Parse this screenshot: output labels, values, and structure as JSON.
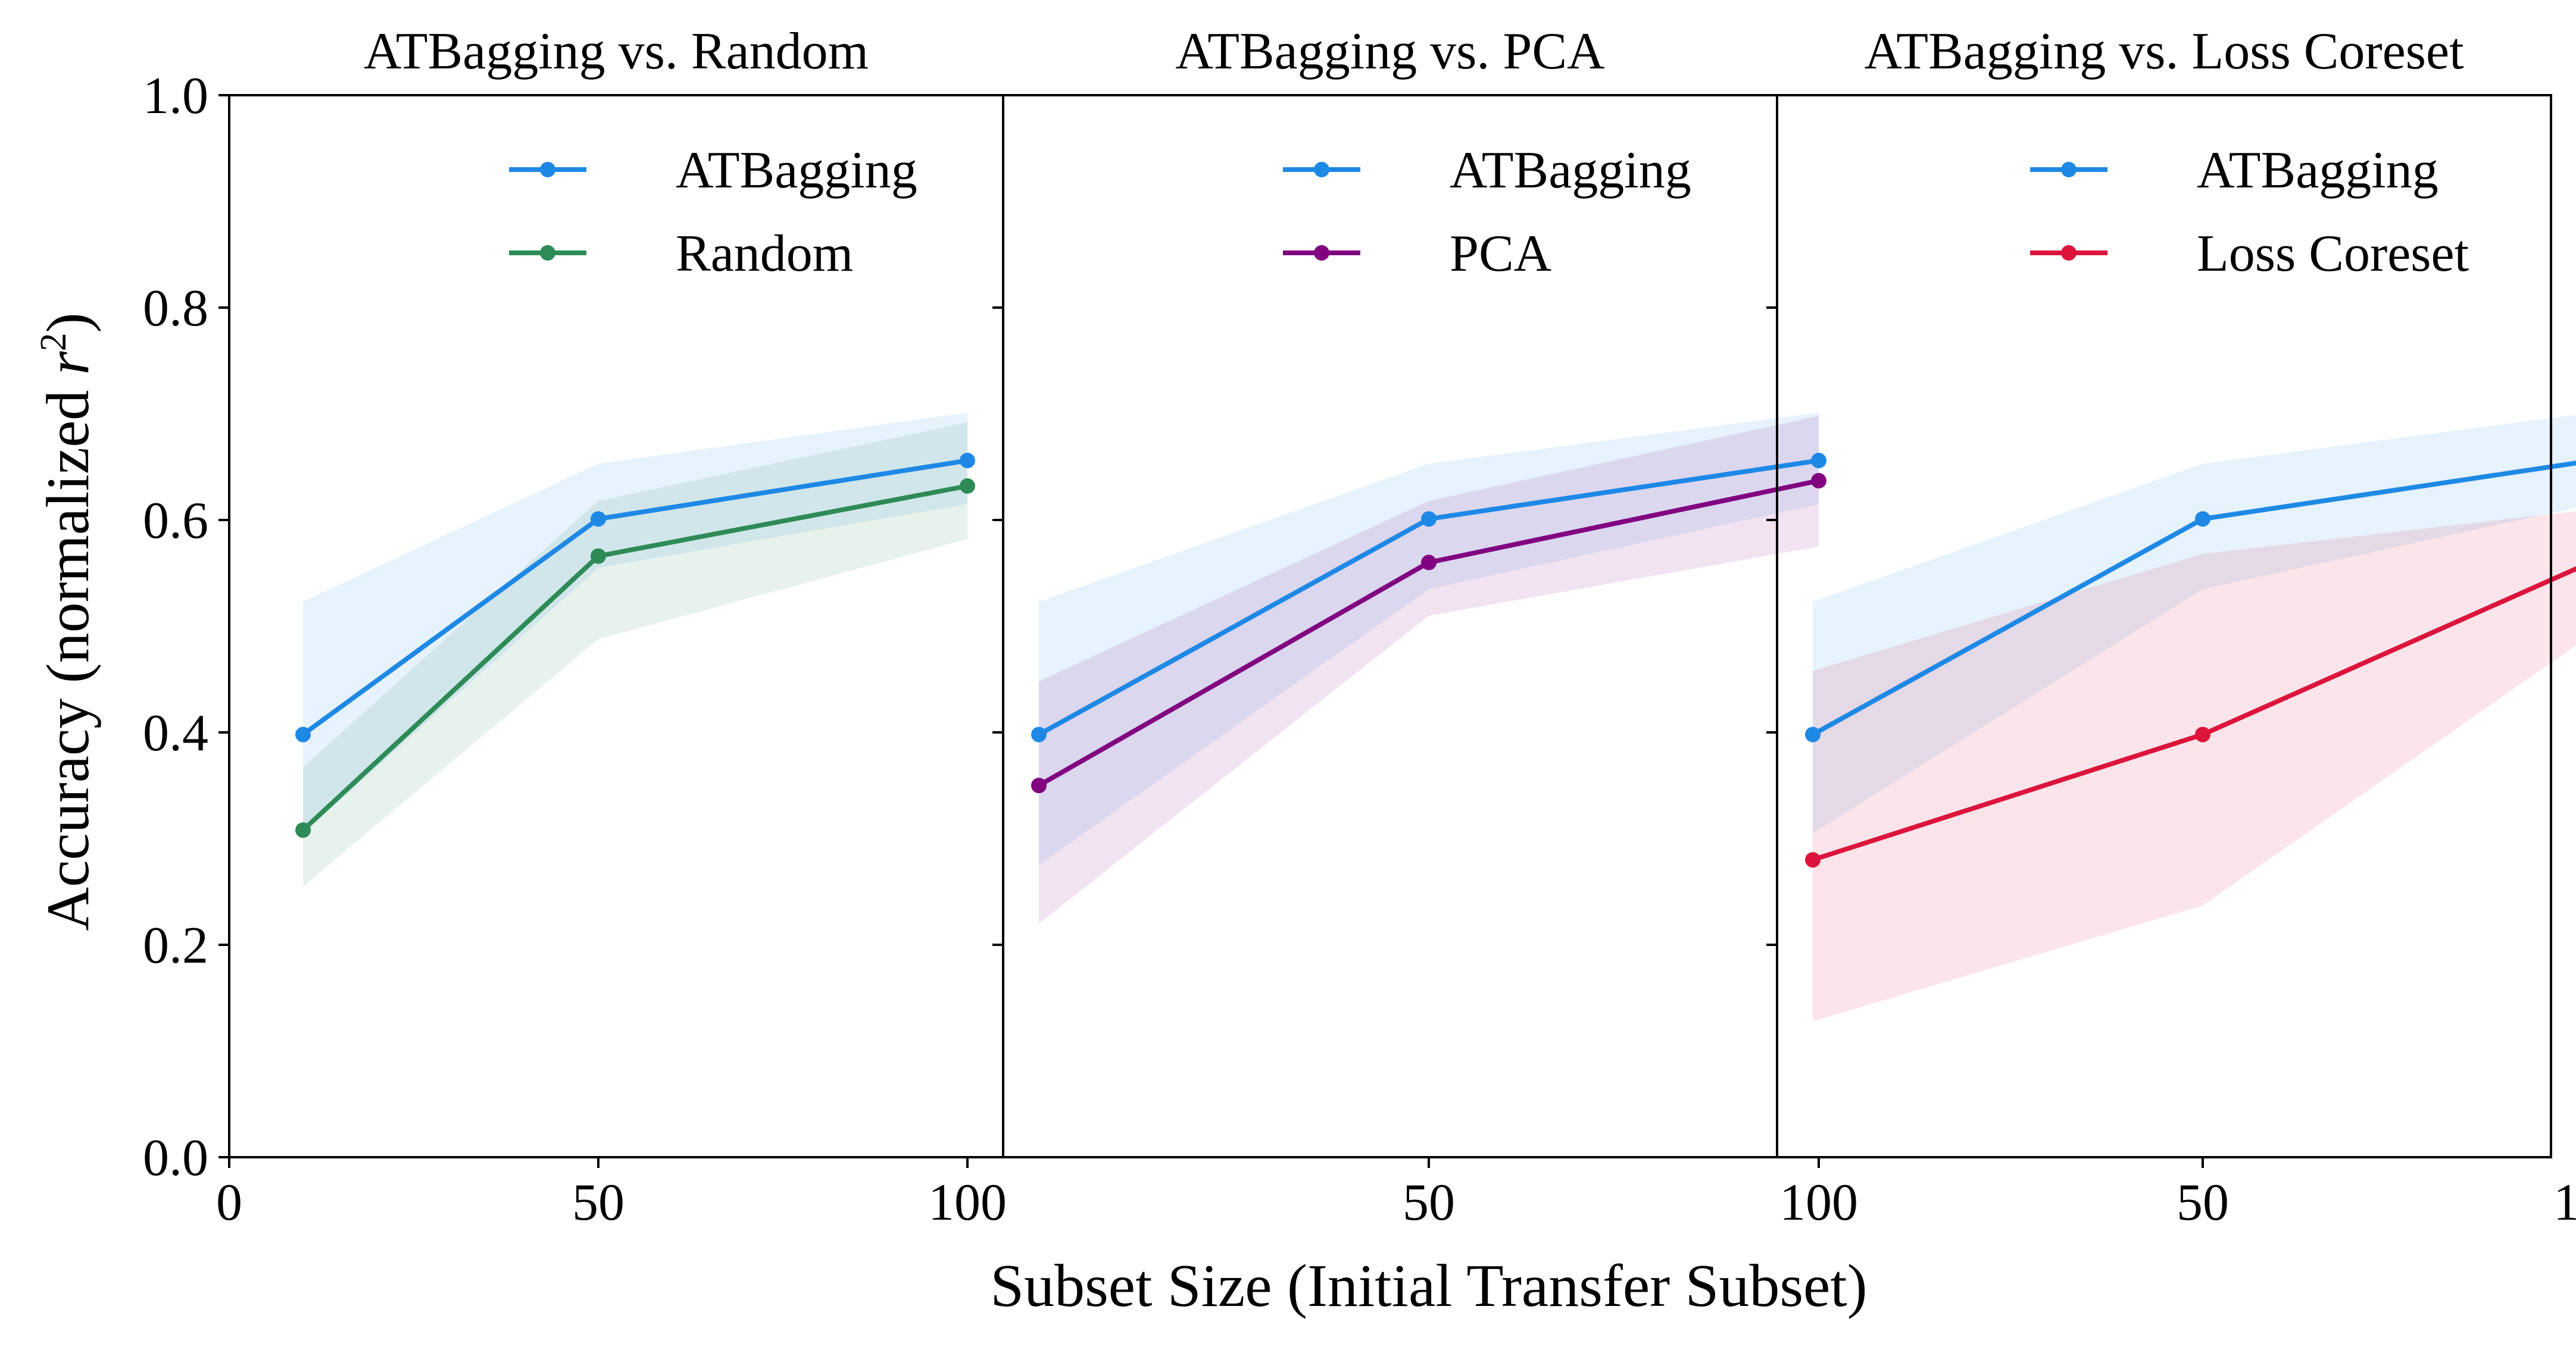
{
  "chart_data": {
    "type": "line",
    "xlabel": "Subset Size (Initial Transfer Subset)",
    "ylabel": "Accuracy (normalized r²)",
    "ylabel_base": "Accuracy (normalized ",
    "ylabel_var": "r",
    "ylabel_sup": "2",
    "ylabel_close": ")",
    "ylim": [
      0.0,
      1.0
    ],
    "yticks": [
      "0.0",
      "0.2",
      "0.4",
      "0.6",
      "0.8",
      "1.0"
    ],
    "yticks_values": [
      0.0,
      0.2,
      0.4,
      0.6,
      0.8,
      1.0
    ],
    "legend_position": "top-right",
    "grid": false,
    "panels": [
      {
        "title": "ATBagging vs. Random",
        "xlim": [
          0,
          100
        ],
        "xticks": [
          "0",
          "50",
          "100"
        ],
        "xticks_values": [
          0,
          50,
          100
        ],
        "series": [
          {
            "name": "ATBagging",
            "color": "#1E88E5",
            "x": [
              10,
              50,
              100
            ],
            "y": [
              0.398,
              0.601,
              0.656
            ],
            "lower": [
              0.305,
              0.555,
              0.615
            ],
            "upper": [
              0.523,
              0.653,
              0.701
            ]
          },
          {
            "name": "Random",
            "color": "#2E8B57",
            "x": [
              10,
              50,
              100
            ],
            "y": [
              0.308,
              0.566,
              0.632
            ],
            "lower": [
              0.255,
              0.488,
              0.582
            ],
            "upper": [
              0.367,
              0.618,
              0.692
            ]
          }
        ]
      },
      {
        "title": "ATBagging vs. PCA",
        "xlim": [
          -5,
          100
        ],
        "xticks": [
          "50",
          "100"
        ],
        "xticks_values": [
          50,
          100
        ],
        "series": [
          {
            "name": "ATBagging",
            "color": "#1E88E5",
            "x": [
              0,
              50,
              100
            ],
            "y": [
              0.398,
              0.601,
              0.656
            ],
            "lower": [
              0.275,
              0.535,
              0.615
            ],
            "upper": [
              0.523,
              0.653,
              0.701
            ]
          },
          {
            "name": "PCA",
            "color": "#800080",
            "x": [
              0,
              50,
              100
            ],
            "y": [
              0.35,
              0.56,
              0.637
            ],
            "lower": [
              0.22,
              0.51,
              0.575
            ],
            "upper": [
              0.448,
              0.618,
              0.698
            ]
          }
        ]
      },
      {
        "title": "ATBagging vs. Loss Coreset",
        "xlim": [
          -5,
          100
        ],
        "xticks": [
          "50",
          "100"
        ],
        "xticks_values": [
          50,
          100
        ],
        "series": [
          {
            "name": "ATBagging",
            "color": "#1E88E5",
            "x": [
              0,
              50,
              100
            ],
            "y": [
              0.398,
              0.601,
              0.656
            ],
            "lower": [
              0.305,
              0.535,
              0.615
            ],
            "upper": [
              0.523,
              0.653,
              0.701
            ]
          },
          {
            "name": "Loss Coreset",
            "color": "#DC143C",
            "x": [
              0,
              50,
              100
            ],
            "y": [
              0.28,
              0.398,
              0.561
            ],
            "lower": [
              0.128,
              0.237,
              0.493
            ],
            "upper": [
              0.458,
              0.568,
              0.61
            ]
          }
        ]
      }
    ]
  }
}
